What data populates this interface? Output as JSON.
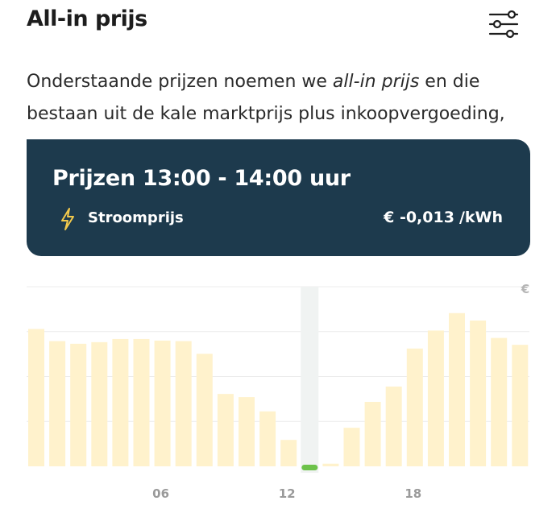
{
  "header": {
    "title": "All-in prijs",
    "filter_icon": "sliders-icon"
  },
  "intro": {
    "text_before": "Onderstaande prijzen noemen we ",
    "text_em": "all-in prijs",
    "text_after": " en die bestaan uit de kale marktprijs plus inkoopvergoeding,"
  },
  "tooltip": {
    "title": "Prijzen 13:00 - 14:00 uur",
    "icon": "lightning-icon",
    "label": "Stroomprijs",
    "value": "€ -0,013",
    "unit": "/kWh"
  },
  "chart_data": {
    "type": "bar",
    "y_unit_label": "€",
    "x_tick_labels": [
      {
        "hour": 6,
        "label": "06"
      },
      {
        "hour": 12,
        "label": "12"
      },
      {
        "hour": 18,
        "label": "18"
      }
    ],
    "hours": [
      0,
      1,
      2,
      3,
      4,
      5,
      6,
      7,
      8,
      9,
      10,
      11,
      12,
      13,
      14,
      15,
      16,
      17,
      18,
      19,
      20,
      21,
      22,
      23
    ],
    "values": [
      0.26,
      0.237,
      0.232,
      0.235,
      0.241,
      0.241,
      0.238,
      0.237,
      0.213,
      0.137,
      0.131,
      0.104,
      0.05,
      -0.013,
      0.005,
      0.073,
      0.122,
      0.151,
      0.223,
      0.257,
      0.29,
      0.276,
      0.243,
      0.23
    ],
    "selected_hour": 13,
    "ylim": [
      0,
      0.34
    ],
    "grid": true,
    "colors": {
      "bar": "#fff2cc",
      "selected_marker": "#6cc24a",
      "selected_column": "#f0f3f2",
      "grid": "#ececec",
      "axis_text": "#9a9a9a"
    }
  }
}
